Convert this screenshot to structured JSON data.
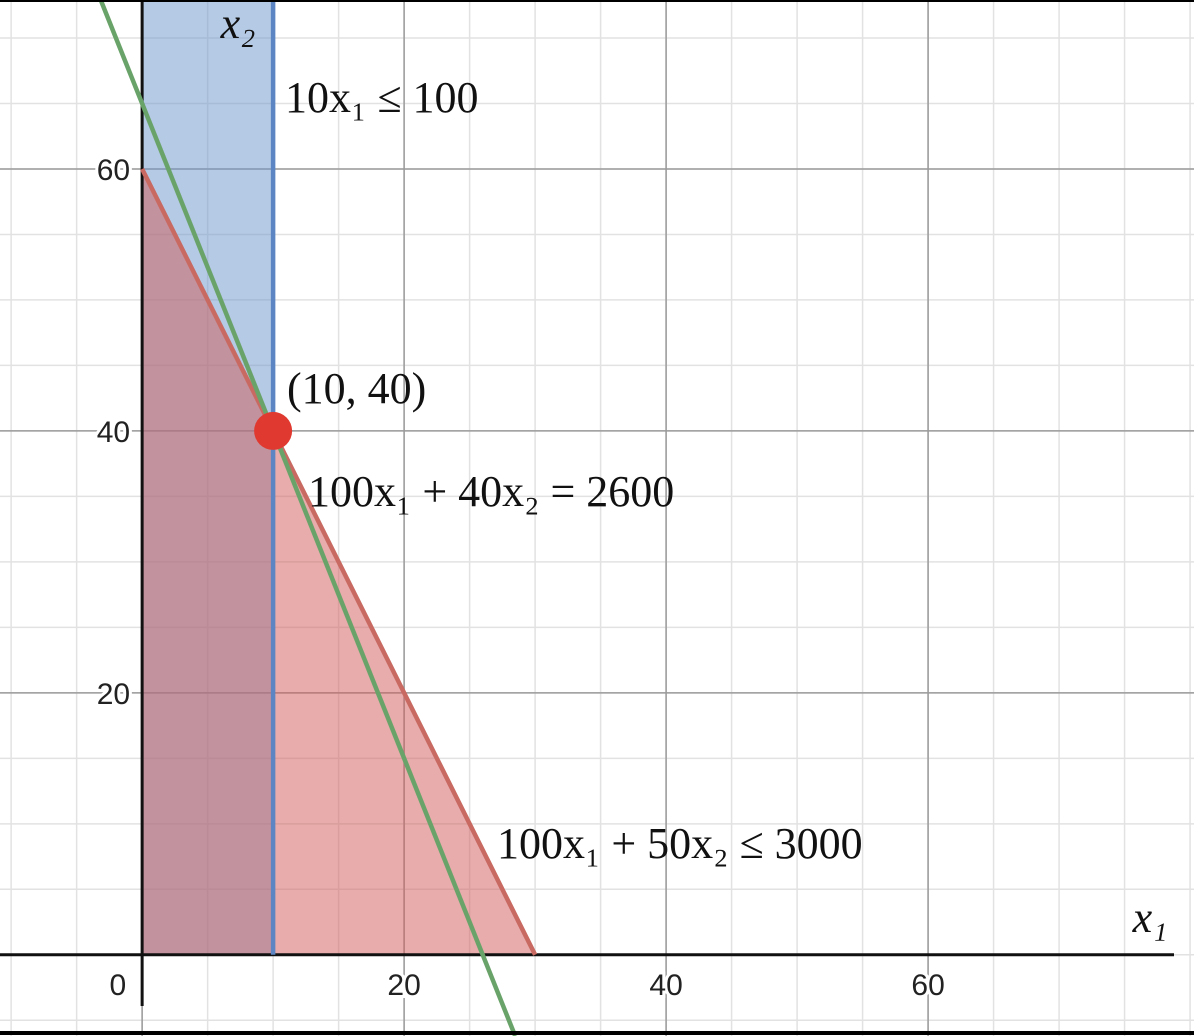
{
  "chart_data": {
    "type": "region",
    "xlim": [
      -10.85,
      80.3
    ],
    "ylim": [
      -6.2,
      72.9
    ],
    "xticks": [
      0,
      20,
      40,
      60
    ],
    "yticks": [
      20,
      40,
      60
    ],
    "minor_grid_step": 5,
    "grid": true,
    "x_label": "x₁",
    "y_label": "x₂",
    "regions": [
      {
        "color": "#6b95cc",
        "x": [
          0,
          10,
          10,
          0
        ],
        "y": [
          0,
          0,
          72.9,
          72.9
        ]
      },
      {
        "color": "#cf5a58",
        "x": [
          0,
          30,
          0
        ],
        "y": [
          0,
          0,
          60
        ]
      }
    ],
    "lines": [
      {
        "color": "#5b85c3",
        "x": [
          10,
          10
        ],
        "y": [
          0,
          72.9
        ]
      },
      {
        "color": "#c96a62",
        "x": [
          0,
          30
        ],
        "y": [
          60,
          0
        ]
      },
      {
        "color": "#6aa36a",
        "x": [
          -3.16,
          28.48
        ],
        "y": [
          72.9,
          -6.2
        ]
      }
    ],
    "points": [
      {
        "color": "#e03a30",
        "x": 10,
        "y": 40
      }
    ],
    "annotations": [
      "10x₁ ≤ 100",
      "(10, 40)",
      "100x₁ + 40x₂ = 2600",
      "100x₁ + 50x₂ ≤ 3000"
    ]
  }
}
